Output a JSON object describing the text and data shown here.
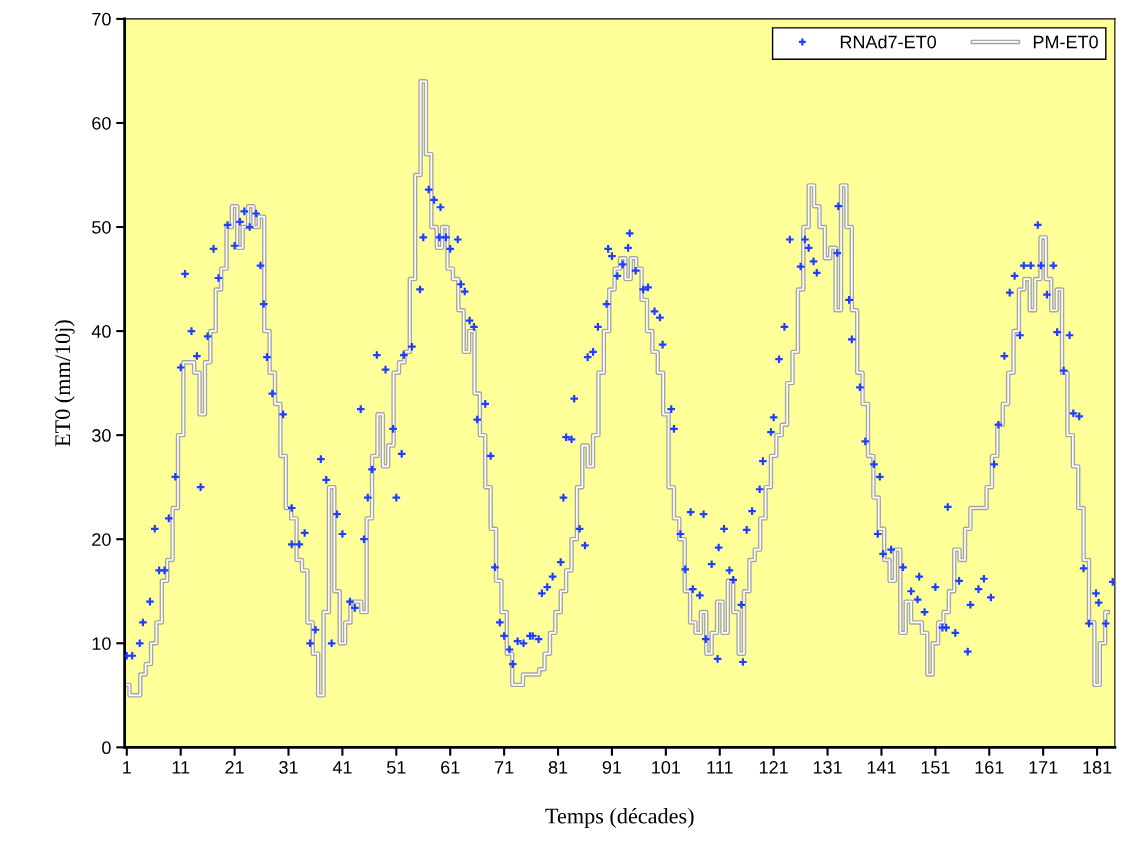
{
  "chart_data": {
    "type": "step",
    "xlabel": "Temps (décades)",
    "ylabel": "ET0 (mm/10j)",
    "xlim": [
      0.6,
      184.3
    ],
    "ylim": [
      0,
      70
    ],
    "xticks": [
      1,
      11,
      21,
      31,
      41,
      51,
      61,
      71,
      81,
      91,
      101,
      111,
      121,
      131,
      141,
      151,
      161,
      171,
      181
    ],
    "yticks": [
      0,
      10,
      20,
      30,
      40,
      50,
      60,
      70
    ],
    "grid": false,
    "legend": "top right",
    "series": [
      {
        "name": "RNAd7-ET0",
        "type": "scatter",
        "marker": "cross",
        "color": "#1f3fff",
        "x": [
          1,
          2,
          3.4,
          4,
          5.3,
          6.2,
          7,
          8,
          8.8,
          10,
          11,
          11.8,
          13,
          14,
          14.7,
          16,
          17.1,
          18,
          19.7,
          21,
          22,
          22.8,
          23.8,
          25,
          25.8,
          26.4,
          27,
          28,
          30,
          31.6,
          31.6,
          33,
          34,
          35,
          36,
          37,
          38,
          39,
          40,
          41,
          42.4,
          43.3,
          44.4,
          45,
          45.7,
          46.5,
          47.4,
          49,
          50.4,
          51,
          52,
          52.4,
          53.9,
          55.4,
          56,
          57,
          58,
          59,
          59.2,
          60.2,
          61,
          62.4,
          63,
          63.7,
          64.6,
          65.4,
          66,
          67.5,
          68.5,
          69.3,
          70.2,
          71,
          72,
          72.6,
          73.5,
          74.6,
          75.8,
          76.3,
          77.4,
          78,
          79,
          80,
          81.5,
          82,
          82.5,
          83.5,
          84,
          85,
          86,
          86.5,
          87.5,
          88.4,
          90,
          90.3,
          91,
          92,
          93,
          94,
          94.3,
          95.4,
          96.8,
          97.7,
          98.9,
          99.9,
          100.4,
          102,
          102.5,
          103.7,
          104.6,
          105.6,
          106,
          107.3,
          108,
          108.4,
          109.5,
          110.6,
          110.8,
          111.8,
          112.8,
          113.5,
          115,
          115.3,
          116,
          117,
          118.4,
          119,
          120.5,
          121,
          122,
          123,
          124,
          126,
          126.8,
          127.5,
          128.4,
          129,
          132.8,
          133,
          135,
          135.5,
          137,
          138,
          139.6,
          140.3,
          140.7,
          141.3,
          142.8,
          145,
          146.5,
          147.7,
          148,
          149,
          151,
          152.3,
          153,
          153.3,
          154.7,
          155.4,
          157,
          157.5,
          159,
          160,
          161.3,
          161.9,
          162.7,
          163.8,
          164.8,
          165.7,
          166.7,
          167.4,
          168.7,
          170,
          170.6,
          171.7,
          172.9,
          173.6,
          174.8,
          175.9,
          176.6,
          177.7,
          178.5,
          179.5,
          180.8,
          181.3,
          182.6,
          183.9
        ],
        "values": [
          8.8,
          8.8,
          10,
          12,
          14,
          21,
          17,
          17,
          22,
          26,
          36.5,
          45.5,
          40,
          37.6,
          25,
          39.5,
          47.9,
          45.1,
          50.2,
          48.2,
          50.5,
          51.5,
          50,
          51.3,
          46.3,
          42.6,
          37.5,
          34,
          32,
          23,
          19.5,
          19.5,
          20.6,
          10,
          11.3,
          27.7,
          25.7,
          10,
          22.4,
          20.5,
          14,
          13.4,
          32.5,
          20,
          24,
          26.7,
          37.7,
          36.3,
          30.6,
          24,
          28.2,
          37.7,
          38.5,
          44,
          49,
          53.6,
          52.6,
          49,
          51.9,
          49,
          47.9,
          48.8,
          44.5,
          43.8,
          41,
          40.4,
          31.5,
          33,
          28,
          17.3,
          12,
          10.7,
          9.4,
          8,
          10.2,
          10,
          10.7,
          10.7,
          10.4,
          14.8,
          15.4,
          16.4,
          17.8,
          24,
          29.8,
          29.6,
          33.5,
          21,
          19.4,
          37.5,
          38,
          40.4,
          42.6,
          47.9,
          47.2,
          45.3,
          46.4,
          48,
          49.4,
          45.8,
          44,
          44.2,
          41.9,
          41.3,
          38.7,
          32.5,
          30.6,
          20.5,
          17.1,
          22.6,
          15.2,
          14.6,
          22.4,
          10.4,
          17.6,
          8.5,
          19.2,
          21,
          17,
          16.1,
          13.7,
          8.2,
          20.9,
          22.7,
          24.8,
          27.5,
          30.3,
          31.7,
          37.3,
          40.4,
          48.8,
          46.2,
          48.8,
          48,
          46.7,
          45.6,
          47.5,
          52,
          43,
          39.2,
          34.6,
          29.4,
          27.2,
          20.5,
          26,
          18.6,
          19,
          17.3,
          15,
          14.2,
          16.4,
          13,
          15.4,
          11.5,
          11.5,
          23.1,
          11,
          16,
          9.2,
          13.7,
          15.2,
          16.2,
          14.4,
          27.2,
          31,
          37.6,
          43.7,
          45.3,
          39.6,
          46.3,
          46.3,
          50.2,
          46.3,
          43.5,
          46.3,
          39.9,
          36.2,
          39.6,
          32.1,
          31.8,
          17.2,
          11.9,
          14.8,
          13.9,
          11.9,
          15.9
        ]
      },
      {
        "name": "PM-ET0",
        "color": "#a6a6a6",
        "x": [
          1,
          2,
          3,
          4,
          5,
          6,
          7,
          8,
          9,
          10,
          11,
          12,
          13,
          14,
          15,
          16,
          17,
          18,
          19,
          20,
          21,
          22,
          23,
          24,
          25,
          26,
          27,
          28,
          29,
          30,
          31,
          32,
          33,
          34,
          35,
          36,
          37,
          38,
          39,
          40,
          41,
          42,
          43,
          44,
          45,
          46,
          47,
          48,
          49,
          50,
          51,
          52,
          53,
          54,
          55,
          56,
          57,
          58,
          59,
          60,
          61,
          62,
          63,
          64,
          65,
          66,
          67,
          68,
          69,
          70,
          71,
          72,
          73,
          74,
          75,
          76,
          77,
          78,
          79,
          80,
          81,
          82,
          83,
          84,
          85,
          86,
          87,
          88,
          89,
          90,
          91,
          92,
          93,
          94,
          95,
          96,
          97,
          98,
          99,
          100,
          101,
          102,
          103,
          104,
          105,
          106,
          107,
          108,
          109,
          110,
          111,
          112,
          113,
          114,
          115,
          116,
          117,
          118,
          119,
          120,
          121,
          122,
          123,
          124,
          125,
          126,
          127,
          128,
          129,
          130,
          131,
          132,
          133,
          134,
          135,
          136,
          137,
          138,
          139,
          140,
          141,
          142,
          143,
          144,
          145,
          146,
          147,
          148,
          149,
          150,
          151,
          152,
          153,
          154,
          155,
          156,
          157,
          158,
          159,
          160,
          161,
          162,
          163,
          164,
          165,
          166,
          167,
          168,
          169,
          170,
          171,
          172,
          173,
          174,
          175,
          176,
          177,
          178,
          179,
          180,
          181,
          182,
          183
        ],
        "values": [
          6,
          5,
          5,
          7,
          8,
          10,
          12,
          16,
          18,
          23,
          30,
          37,
          37,
          36,
          32,
          37,
          40,
          44,
          46,
          50,
          52,
          48,
          50,
          52,
          50,
          51,
          40,
          36,
          33,
          28,
          23,
          22,
          18,
          17,
          12,
          9,
          5,
          13,
          25,
          15,
          10,
          12,
          14,
          14,
          13,
          22,
          28,
          32,
          27,
          29,
          36,
          37,
          38,
          45,
          55,
          64,
          57,
          50,
          48,
          50,
          46,
          45,
          42,
          38,
          40,
          34,
          30,
          25,
          21,
          16,
          13,
          9,
          6,
          6,
          7,
          7,
          7,
          7.5,
          9,
          11,
          13,
          15,
          17,
          20,
          25,
          29,
          27,
          30,
          36,
          40,
          44,
          46,
          47,
          45,
          47,
          46,
          43,
          40,
          38,
          36,
          32,
          25,
          22,
          20,
          15,
          12,
          11,
          13,
          9,
          11,
          14,
          11,
          16,
          13,
          9,
          15,
          18,
          19,
          22,
          25,
          28,
          30,
          31,
          35,
          38,
          44,
          50,
          54,
          52,
          50,
          47,
          48,
          42,
          54,
          50,
          42,
          36,
          33,
          28,
          24,
          21,
          18,
          16,
          19,
          11,
          14,
          12,
          12,
          11,
          7,
          10,
          12,
          13,
          15,
          19,
          18,
          21,
          23,
          23,
          23,
          25,
          28,
          31,
          33,
          36,
          40,
          44,
          45,
          42,
          45,
          49,
          45,
          42,
          44,
          36,
          30,
          27,
          23,
          18,
          12,
          6,
          10,
          13
        ]
      }
    ]
  }
}
